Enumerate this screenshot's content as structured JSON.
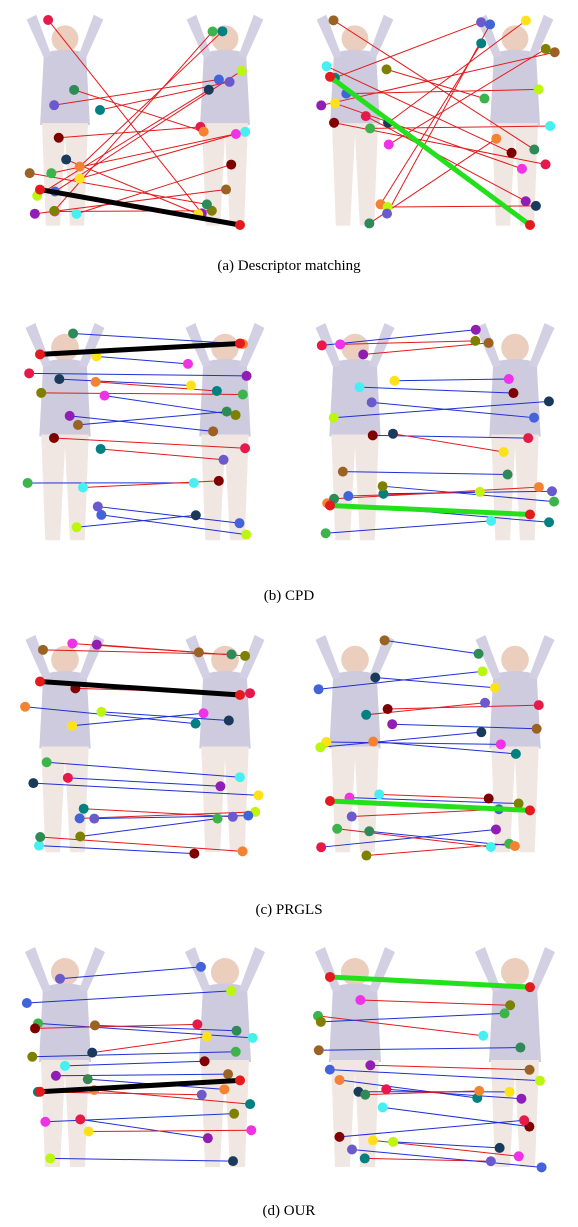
{
  "figure": {
    "panels": [
      {
        "caption": "(a)  Descriptor matching"
      },
      {
        "caption": "(b)  CPD"
      },
      {
        "caption": "(c)  PRGLS"
      },
      {
        "caption": "(d)  OUR"
      }
    ]
  }
}
